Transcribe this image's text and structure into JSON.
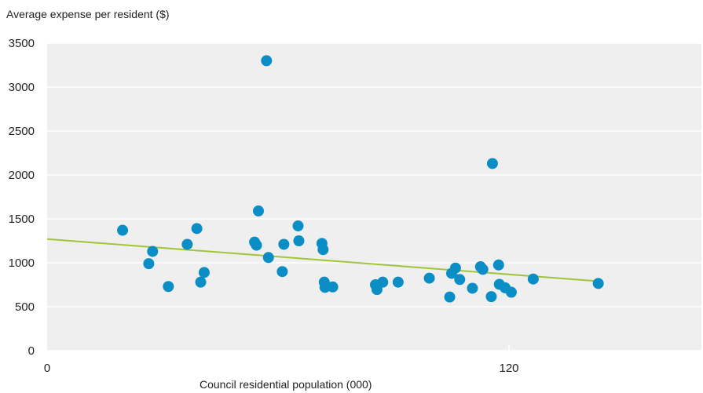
{
  "chart_data": {
    "type": "scatter",
    "title": "",
    "ylabel": "Average expense per resident ($)",
    "xlabel": "Council residential population (000)",
    "xlim": [
      0,
      170
    ],
    "ylim": [
      0,
      3500
    ],
    "xticks": [
      0,
      120
    ],
    "xtick_labels": [
      "0",
      "120"
    ],
    "yticks": [
      0,
      500,
      1000,
      1500,
      2000,
      2500,
      3000,
      3500
    ],
    "ytick_labels": [
      "0",
      "500",
      "1000",
      "1500",
      "2000",
      "2500",
      "3000",
      "3500"
    ],
    "grid": "horizontal",
    "point_color": "#0a8ec5",
    "trend_color": "#a3c43a",
    "points": [
      {
        "x": 19.6,
        "y": 1370
      },
      {
        "x": 26.4,
        "y": 990
      },
      {
        "x": 27.4,
        "y": 1130
      },
      {
        "x": 31.5,
        "y": 730
      },
      {
        "x": 36.4,
        "y": 1210
      },
      {
        "x": 38.9,
        "y": 1390
      },
      {
        "x": 39.9,
        "y": 780
      },
      {
        "x": 40.8,
        "y": 890
      },
      {
        "x": 53.9,
        "y": 1235
      },
      {
        "x": 54.4,
        "y": 1200
      },
      {
        "x": 54.9,
        "y": 1590
      },
      {
        "x": 57.0,
        "y": 3300
      },
      {
        "x": 57.5,
        "y": 1060
      },
      {
        "x": 61.1,
        "y": 900
      },
      {
        "x": 61.5,
        "y": 1210
      },
      {
        "x": 65.2,
        "y": 1420
      },
      {
        "x": 65.4,
        "y": 1250
      },
      {
        "x": 71.4,
        "y": 1220
      },
      {
        "x": 71.7,
        "y": 1150
      },
      {
        "x": 72.0,
        "y": 780
      },
      {
        "x": 72.2,
        "y": 720
      },
      {
        "x": 74.2,
        "y": 725
      },
      {
        "x": 85.3,
        "y": 750
      },
      {
        "x": 85.7,
        "y": 695
      },
      {
        "x": 87.2,
        "y": 780
      },
      {
        "x": 91.2,
        "y": 780
      },
      {
        "x": 99.3,
        "y": 825
      },
      {
        "x": 104.6,
        "y": 610
      },
      {
        "x": 105.1,
        "y": 880
      },
      {
        "x": 106.1,
        "y": 940
      },
      {
        "x": 107.2,
        "y": 810
      },
      {
        "x": 110.5,
        "y": 710
      },
      {
        "x": 112.6,
        "y": 955
      },
      {
        "x": 113.2,
        "y": 925
      },
      {
        "x": 115.7,
        "y": 2130
      },
      {
        "x": 115.4,
        "y": 615
      },
      {
        "x": 117.3,
        "y": 975
      },
      {
        "x": 117.5,
        "y": 755
      },
      {
        "x": 119.0,
        "y": 715
      },
      {
        "x": 120.6,
        "y": 665
      },
      {
        "x": 126.3,
        "y": 815
      },
      {
        "x": 143.2,
        "y": 765
      }
    ],
    "trendline": {
      "x1": 0,
      "y1": 1270,
      "x2": 143.2,
      "y2": 790
    }
  }
}
